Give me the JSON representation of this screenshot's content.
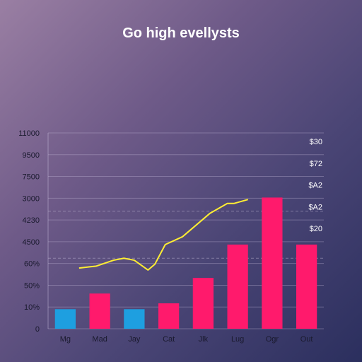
{
  "chart_data": {
    "type": "bar",
    "title": "Go high evellysts",
    "categories": [
      "Mg",
      "Mad",
      "Jay",
      "Cat",
      "Jlk",
      "Lug",
      "Ogr",
      "Out"
    ],
    "y_tick_labels": [
      "0",
      "10%",
      "50%",
      "60%",
      "4500",
      "4230",
      "3000",
      "7500",
      "9500",
      "11000"
    ],
    "right_tick_labels": [
      "$30",
      "$72",
      "$A2",
      "$A2",
      "$20"
    ],
    "series": [
      {
        "type": "bar",
        "values": [
          1.0,
          1.8,
          1.0,
          1.3,
          2.6,
          4.3,
          6.7,
          4.3
        ],
        "colors": [
          "#1e9fe0",
          "#ff1a6c",
          "#1e9fe0",
          "#ff1a6c",
          "#ff1a6c",
          "#ff1a6c",
          "#ff1a6c",
          "#ff1a6c"
        ]
      },
      {
        "type": "line",
        "color": "#ffee33",
        "points": [
          [
            0.9,
            3.1
          ],
          [
            1.4,
            3.2
          ],
          [
            1.9,
            3.5
          ],
          [
            2.2,
            3.6
          ],
          [
            2.5,
            3.5
          ],
          [
            2.9,
            3.0
          ],
          [
            3.1,
            3.3
          ],
          [
            3.4,
            4.3
          ],
          [
            3.9,
            4.7
          ],
          [
            4.3,
            5.3
          ],
          [
            4.7,
            5.9
          ],
          [
            5.2,
            6.4
          ],
          [
            5.4,
            6.4
          ],
          [
            5.8,
            6.6
          ]
        ]
      }
    ],
    "ylim": [
      0,
      10
    ],
    "xlim": [
      0,
      8
    ],
    "grid": true,
    "dashed_gridlines": [
      3.6,
      6.0
    ]
  }
}
